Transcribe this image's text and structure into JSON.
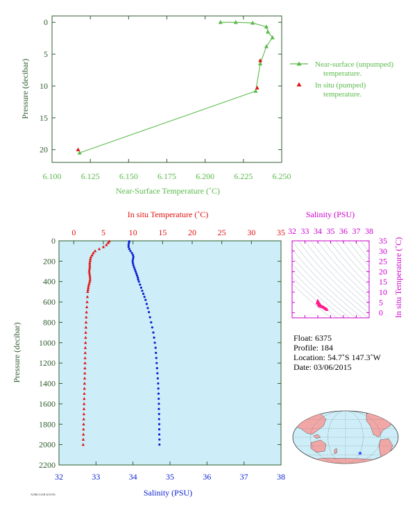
{
  "colors": {
    "axis": "#2d5b2d",
    "near_surface": "#59b94a",
    "in_situ": "#e01010",
    "temperature": "#e01010",
    "salinity": "#0a1fd0",
    "magenta": "#cc00cc",
    "panel_bg": "#cdeef8",
    "ts_points": "#ff1a8c",
    "land": "#f2a7a7",
    "ocean": "#cdeef8"
  },
  "chart_data": [
    {
      "type": "line",
      "xlabel": "Near-Surface Temperature (˚C)",
      "ylabel": "Pressure (decibar)",
      "xlim": [
        6.1,
        6.25
      ],
      "ylim": [
        22,
        -1
      ],
      "x_ticks": [
        "6.100",
        "6.125",
        "6.150",
        "6.175",
        "6.200",
        "6.225",
        "6.250"
      ],
      "y_ticks": [
        "0",
        "5",
        "10",
        "15",
        "20"
      ],
      "legend_position": "right",
      "series": [
        {
          "name": "Near-surface (unpumped) temperature.",
          "marker": "triangle",
          "points": [
            [
              6.21,
              0.0
            ],
            [
              6.22,
              0.0
            ],
            [
              6.231,
              0.1
            ],
            [
              6.24,
              0.7
            ],
            [
              6.241,
              1.5
            ],
            [
              6.244,
              2.4
            ],
            [
              6.24,
              3.8
            ],
            [
              6.236,
              6.5
            ],
            [
              6.233,
              10.8
            ],
            [
              6.118,
              20.5
            ]
          ]
        },
        {
          "name": "In situ (pumped) temperature.",
          "marker": "triangle",
          "points": [
            [
              6.236,
              6.0
            ],
            [
              6.234,
              10.3
            ],
            [
              6.117,
              20.0
            ]
          ]
        }
      ]
    },
    {
      "type": "scatter",
      "ylabel": "Pressure (decibar)",
      "ylim": [
        2200,
        0
      ],
      "y_ticks": [
        "0",
        "200",
        "400",
        "600",
        "800",
        "1000",
        "1200",
        "1400",
        "1600",
        "1800",
        "2000",
        "2200"
      ],
      "top_axis": {
        "label": "In situ Temperature (˚C)",
        "range": [
          -2.5,
          35
        ],
        "ticks": [
          "0",
          "5",
          "10",
          "15",
          "20",
          "25",
          "30",
          "35"
        ]
      },
      "bottom_axis": {
        "label": "Salinity (PSU)",
        "range": [
          32,
          38
        ],
        "ticks": [
          "32",
          "33",
          "34",
          "35",
          "36",
          "37",
          "38"
        ]
      },
      "series": [
        {
          "marker": "triangle",
          "points": [
            [
              6.0,
              5
            ],
            [
              5.8,
              20
            ],
            [
              5.5,
              40
            ],
            [
              5.0,
              60
            ],
            [
              4.3,
              80
            ],
            [
              3.6,
              100
            ],
            [
              3.3,
              120
            ],
            [
              3.1,
              140
            ],
            [
              2.9,
              160
            ],
            [
              2.8,
              180
            ],
            [
              2.75,
              200
            ],
            [
              2.7,
              220
            ],
            [
              2.7,
              240
            ],
            [
              2.7,
              260
            ],
            [
              2.65,
              280
            ],
            [
              2.6,
              300
            ],
            [
              2.65,
              320
            ],
            [
              2.7,
              340
            ],
            [
              2.75,
              360
            ],
            [
              2.75,
              380
            ],
            [
              2.7,
              400
            ],
            [
              2.6,
              420
            ],
            [
              2.5,
              440
            ],
            [
              2.45,
              460
            ],
            [
              2.4,
              480
            ],
            [
              2.35,
              500
            ],
            [
              2.3,
              550
            ],
            [
              2.25,
              600
            ],
            [
              2.2,
              650
            ],
            [
              2.15,
              700
            ],
            [
              2.1,
              750
            ],
            [
              2.07,
              800
            ],
            [
              2.05,
              850
            ],
            [
              2.02,
              900
            ],
            [
              2.0,
              950
            ],
            [
              1.98,
              1000
            ],
            [
              1.95,
              1050
            ],
            [
              1.93,
              1100
            ],
            [
              1.91,
              1150
            ],
            [
              1.9,
              1200
            ],
            [
              1.88,
              1250
            ],
            [
              1.86,
              1300
            ],
            [
              1.84,
              1350
            ],
            [
              1.82,
              1400
            ],
            [
              1.8,
              1450
            ],
            [
              1.78,
              1500
            ],
            [
              1.76,
              1550
            ],
            [
              1.74,
              1600
            ],
            [
              1.72,
              1650
            ],
            [
              1.7,
              1700
            ],
            [
              1.68,
              1750
            ],
            [
              1.66,
              1800
            ],
            [
              1.64,
              1850
            ],
            [
              1.62,
              1900
            ],
            [
              1.6,
              1950
            ],
            [
              1.58,
              2000
            ]
          ]
        },
        {
          "marker": "circle",
          "points": [
            [
              33.9,
              5
            ],
            [
              33.89,
              20
            ],
            [
              33.88,
              40
            ],
            [
              33.88,
              60
            ],
            [
              33.9,
              80
            ],
            [
              33.93,
              100
            ],
            [
              33.97,
              120
            ],
            [
              34.0,
              140
            ],
            [
              34.01,
              160
            ],
            [
              34.0,
              180
            ],
            [
              33.99,
              200
            ],
            [
              34.0,
              220
            ],
            [
              34.01,
              240
            ],
            [
              34.03,
              260
            ],
            [
              34.05,
              280
            ],
            [
              34.07,
              300
            ],
            [
              34.09,
              320
            ],
            [
              34.11,
              340
            ],
            [
              34.13,
              360
            ],
            [
              34.14,
              380
            ],
            [
              34.16,
              400
            ],
            [
              34.19,
              430
            ],
            [
              34.22,
              460
            ],
            [
              34.25,
              490
            ],
            [
              34.28,
              520
            ],
            [
              34.31,
              550
            ],
            [
              34.34,
              580
            ],
            [
              34.37,
              620
            ],
            [
              34.4,
              660
            ],
            [
              34.43,
              700
            ],
            [
              34.46,
              750
            ],
            [
              34.49,
              800
            ],
            [
              34.52,
              850
            ],
            [
              34.55,
              900
            ],
            [
              34.57,
              950
            ],
            [
              34.59,
              1000
            ],
            [
              34.61,
              1050
            ],
            [
              34.62,
              1100
            ],
            [
              34.63,
              1150
            ],
            [
              34.64,
              1200
            ],
            [
              34.65,
              1250
            ],
            [
              34.66,
              1300
            ],
            [
              34.67,
              1350
            ],
            [
              34.68,
              1400
            ],
            [
              34.685,
              1450
            ],
            [
              34.69,
              1500
            ],
            [
              34.695,
              1550
            ],
            [
              34.7,
              1600
            ],
            [
              34.7,
              1650
            ],
            [
              34.705,
              1700
            ],
            [
              34.705,
              1750
            ],
            [
              34.71,
              1800
            ],
            [
              34.71,
              1850
            ],
            [
              34.71,
              1900
            ],
            [
              34.715,
              1950
            ],
            [
              34.715,
              2000
            ]
          ]
        }
      ]
    },
    {
      "type": "scatter",
      "xlabel": "Salinity (PSU)",
      "ylabel": "In situ Temperature (˚C)",
      "xlim": [
        32,
        38
      ],
      "ylim": [
        -2.5,
        35
      ],
      "x_ticks": [
        "32",
        "33",
        "34",
        "35",
        "36",
        "37",
        "38"
      ],
      "y_ticks": [
        "0",
        "5",
        "10",
        "15",
        "20",
        "25",
        "30",
        "35"
      ],
      "points": [
        [
          34.0,
          5.9
        ],
        [
          33.98,
          5.3
        ],
        [
          34.02,
          4.6
        ],
        [
          34.05,
          4.0
        ],
        [
          34.1,
          3.6
        ],
        [
          34.15,
          3.3
        ],
        [
          34.2,
          3.2
        ],
        [
          34.25,
          3.1
        ],
        [
          34.3,
          3.0
        ],
        [
          34.35,
          2.9
        ],
        [
          34.4,
          2.8
        ],
        [
          34.45,
          2.6
        ],
        [
          34.5,
          2.4
        ],
        [
          34.55,
          2.2
        ],
        [
          34.6,
          2.0
        ],
        [
          34.65,
          1.8
        ],
        [
          34.7,
          1.6
        ],
        [
          34.72,
          1.5
        ],
        [
          33.95,
          4.8
        ],
        [
          34.08,
          5.0
        ],
        [
          34.12,
          4.4
        ],
        [
          34.18,
          4.0
        ]
      ]
    }
  ],
  "float_info": {
    "float": "Float:  6375",
    "profile": "Profile:  184",
    "location": "Location:  54.7˚S  147.3˚W",
    "date": "Date:  03/06/2015"
  },
  "map": {
    "marker": "star",
    "lon": -147.3,
    "lat": -54.7
  },
  "footer_note": "AOML/GAB 2015/06"
}
